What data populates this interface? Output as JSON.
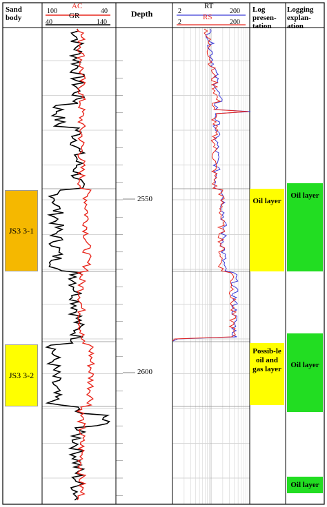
{
  "headers": {
    "sand_body": "Sand body",
    "depth": "Depth",
    "log_presentation": "Log presen-tation",
    "logging_explanation": "Logging explan-ation"
  },
  "curves": {
    "ac": {
      "name": "AC",
      "min": "100",
      "max": "40",
      "color": "#e8261c"
    },
    "gr": {
      "name": "GR",
      "min": "40",
      "max": "140",
      "color": "#000000"
    },
    "rt": {
      "name": "RT",
      "min": "2",
      "max": "200",
      "color": "#3a3ad8"
    },
    "rs": {
      "name": "RS",
      "min": "2",
      "max": "200",
      "color": "#e8261c"
    }
  },
  "depth_marks": [
    "2550",
    "2600"
  ],
  "sand_bodies": [
    {
      "label": "JS3 3-1",
      "color": "#f5b800"
    },
    {
      "label": "JS3 3-2",
      "color": "#ffff00"
    }
  ],
  "log_presentation": [
    {
      "label": "Oil layer",
      "color": "#ffff00"
    },
    {
      "label": "Possib-le oil and gas layer",
      "color": "#ffff00"
    }
  ],
  "logging_explanation": [
    {
      "label": "Oil layer",
      "color": "#22dd22"
    },
    {
      "label": "Oil layer",
      "color": "#22dd22"
    },
    {
      "label": "Oil layer",
      "color": "#22dd22"
    }
  ]
}
